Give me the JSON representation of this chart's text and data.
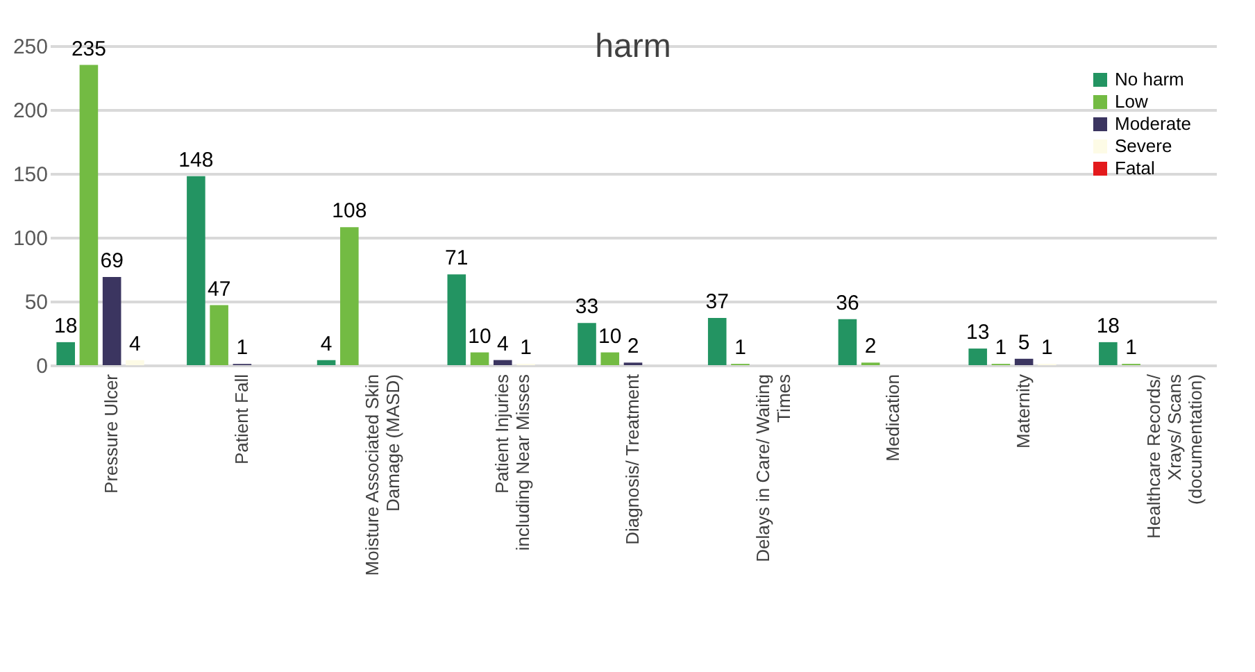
{
  "chart_data": {
    "type": "bar",
    "title": "harm",
    "categories": [
      "Pressure Ulcer",
      "Patient Fall",
      "Moisture Associated Skin Damage (MASD)",
      "Patient Injuries including Near Misses",
      "Diagnosis/ Treatment",
      "Delays in Care/ Waiting Times",
      "Medication",
      "Maternity",
      "Healthcare Records/ Xrays/ Scans (documentation)"
    ],
    "series": [
      {
        "name": "No harm",
        "color": "#239462",
        "values": [
          18,
          148,
          4,
          71,
          33,
          37,
          36,
          13,
          18
        ]
      },
      {
        "name": "Low",
        "color": "#73bb43",
        "values": [
          235,
          47,
          108,
          10,
          10,
          1,
          2,
          1,
          1
        ]
      },
      {
        "name": "Moderate",
        "color": "#3b3560",
        "values": [
          69,
          1,
          null,
          4,
          2,
          null,
          null,
          5,
          null
        ]
      },
      {
        "name": "Severe",
        "color": "#fdfbe6",
        "values": [
          4,
          null,
          null,
          1,
          null,
          null,
          null,
          1,
          null
        ]
      },
      {
        "name": "Fatal",
        "color": "#e31a1c",
        "values": [
          null,
          null,
          null,
          null,
          null,
          null,
          null,
          null,
          null
        ]
      }
    ],
    "ylim": [
      0,
      250
    ],
    "yticks": [
      0,
      50,
      100,
      150,
      200,
      250
    ],
    "grid": "y",
    "legend": "top right",
    "data_labels": true
  }
}
